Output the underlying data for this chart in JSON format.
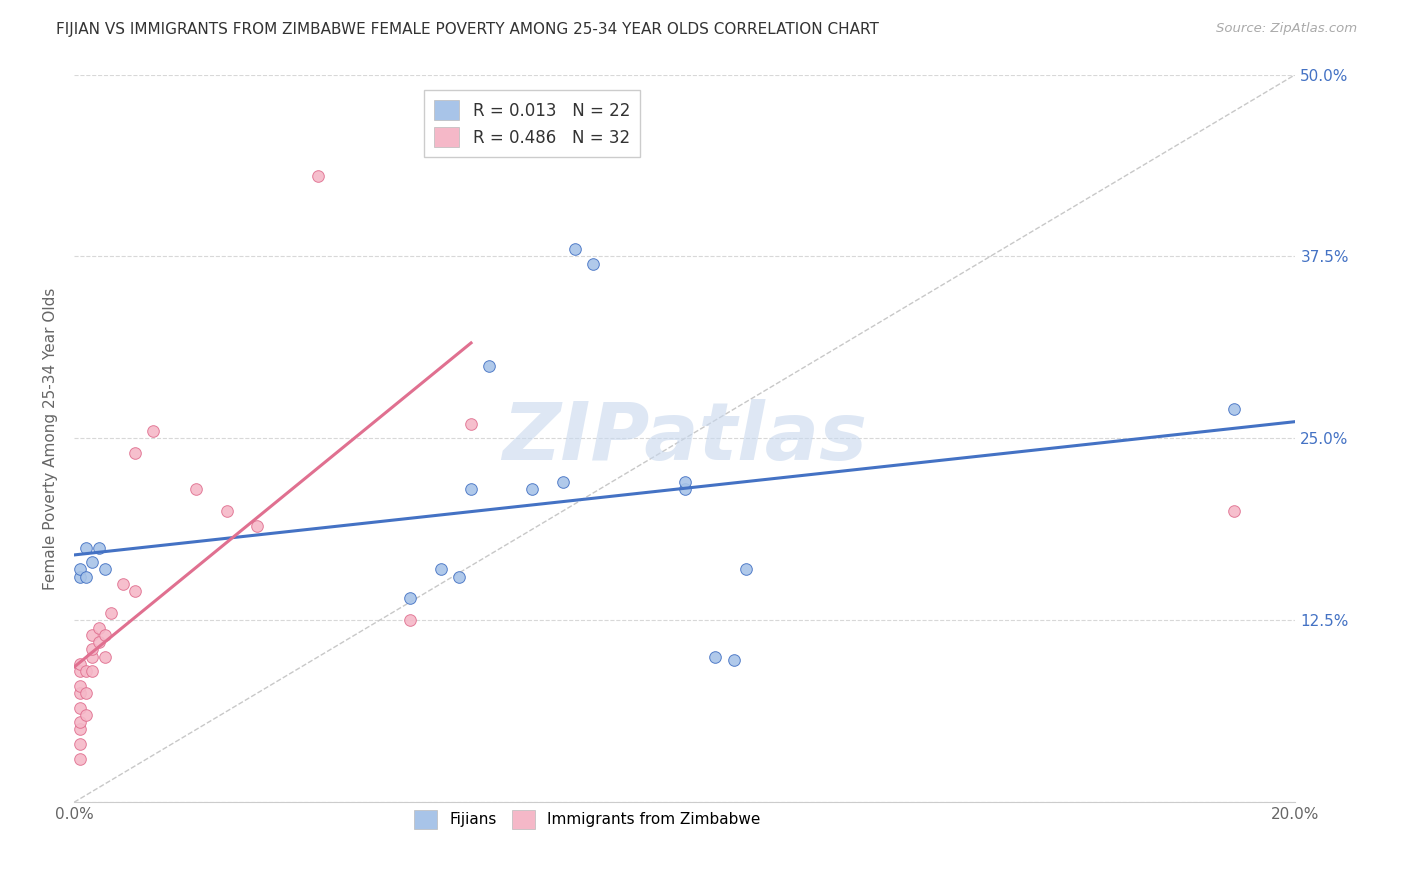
{
  "title": "FIJIAN VS IMMIGRANTS FROM ZIMBABWE FEMALE POVERTY AMONG 25-34 YEAR OLDS CORRELATION CHART",
  "source": "Source: ZipAtlas.com",
  "ylabel": "Female Poverty Among 25-34 Year Olds",
  "xlim": [
    0.0,
    0.2
  ],
  "ylim": [
    0.0,
    0.5
  ],
  "xticks": [
    0.0,
    0.025,
    0.05,
    0.075,
    0.1,
    0.125,
    0.15,
    0.175,
    0.2
  ],
  "yticks": [
    0.0,
    0.125,
    0.25,
    0.375,
    0.5
  ],
  "fijians_x": [
    0.001,
    0.001,
    0.002,
    0.002,
    0.003,
    0.004,
    0.005,
    0.055,
    0.06,
    0.063,
    0.065,
    0.068,
    0.075,
    0.08,
    0.082,
    0.085,
    0.1,
    0.1,
    0.105,
    0.108,
    0.11,
    0.19
  ],
  "fijians_y": [
    0.155,
    0.16,
    0.155,
    0.175,
    0.165,
    0.175,
    0.16,
    0.14,
    0.16,
    0.155,
    0.215,
    0.3,
    0.215,
    0.22,
    0.38,
    0.37,
    0.215,
    0.22,
    0.1,
    0.098,
    0.16,
    0.27
  ],
  "zimbabwe_x": [
    0.001,
    0.001,
    0.001,
    0.001,
    0.001,
    0.001,
    0.001,
    0.001,
    0.001,
    0.002,
    0.002,
    0.002,
    0.003,
    0.003,
    0.003,
    0.003,
    0.004,
    0.004,
    0.005,
    0.005,
    0.006,
    0.008,
    0.01,
    0.01,
    0.013,
    0.02,
    0.025,
    0.03,
    0.04,
    0.055,
    0.065,
    0.19
  ],
  "zimbabwe_y": [
    0.03,
    0.04,
    0.05,
    0.055,
    0.065,
    0.075,
    0.08,
    0.09,
    0.095,
    0.06,
    0.075,
    0.09,
    0.09,
    0.1,
    0.105,
    0.115,
    0.11,
    0.12,
    0.1,
    0.115,
    0.13,
    0.15,
    0.145,
    0.24,
    0.255,
    0.215,
    0.2,
    0.19,
    0.43,
    0.125,
    0.26,
    0.2
  ],
  "fijians_R": 0.013,
  "fijians_N": 22,
  "zimbabwe_R": 0.486,
  "zimbabwe_N": 32,
  "fijian_color": "#a8c4e8",
  "zimbabwe_color": "#f5b8c8",
  "fijian_line_color": "#4472c4",
  "zimbabwe_line_color": "#e07090",
  "diagonal_color": "#c8c8c8",
  "background_color": "#ffffff",
  "grid_color": "#d8d8d8",
  "watermark": "ZIPatlas",
  "watermark_color": "#c8d8ee",
  "fijian_trend_x": [
    0.001,
    0.19
  ],
  "fijian_trend_y": [
    0.21,
    0.22
  ],
  "zimbabwe_trend_x": [
    0.001,
    0.065
  ],
  "zimbabwe_trend_y": [
    0.05,
    0.28
  ]
}
